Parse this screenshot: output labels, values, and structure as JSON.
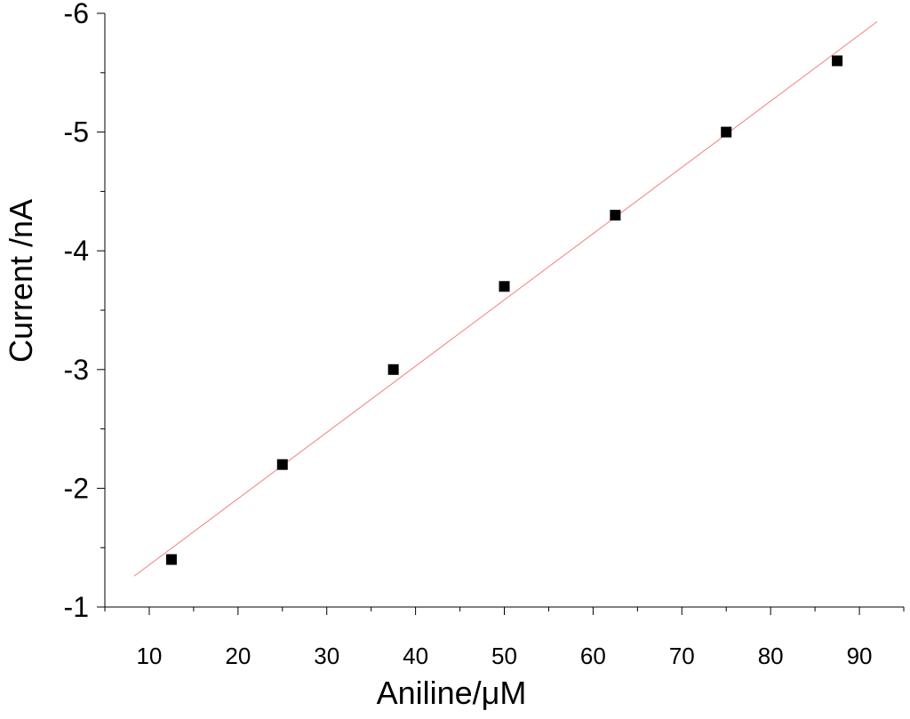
{
  "chart_data": {
    "type": "scatter",
    "title": "",
    "xlabel": "Aniline/μM",
    "ylabel": "Current /nA",
    "xlim": [
      5,
      95
    ],
    "ylim": [
      -1,
      -6
    ],
    "y_axis_inverted": true,
    "grid": false,
    "legend": "none",
    "x_ticks": [
      10,
      20,
      30,
      40,
      50,
      60,
      70,
      80,
      90
    ],
    "x_tick_labels": [
      "10",
      "20",
      "30",
      "40",
      "50",
      "60",
      "70",
      "80",
      "90"
    ],
    "y_ticks": [
      -1,
      -2,
      -3,
      -4,
      -5,
      -6
    ],
    "y_tick_labels": [
      "-1",
      "-2",
      "-3",
      "-4",
      "-5",
      "-6"
    ],
    "series": [
      {
        "marker": "square",
        "color": "#000000",
        "x": [
          12.5,
          25,
          37.5,
          50,
          62.5,
          75,
          87.5
        ],
        "y": [
          -1.4,
          -2.2,
          -3.0,
          -3.7,
          -4.3,
          -5.0,
          -5.6
        ]
      }
    ],
    "fit_line": {
      "color": "#f08080",
      "x": [
        8.3,
        92
      ],
      "y": [
        -1.26,
        -5.93
      ]
    }
  }
}
